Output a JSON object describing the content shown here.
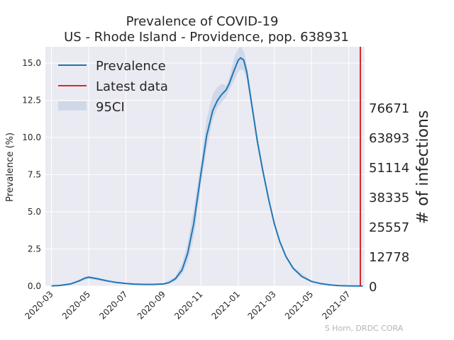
{
  "chart_data": {
    "type": "line",
    "title": "Prevalence of COVID-19",
    "subtitle": "US - Rhode Island - Providence, pop. 638931",
    "ylabel": "Prevalence (%)",
    "y2label": "# of infections",
    "credit": "S Horn, DRDC CORA",
    "ylim": [
      0,
      16.1
    ],
    "xlim": [
      "2020-02-20",
      "2021-07-27"
    ],
    "grid": true,
    "legend_position": "top-left",
    "x_ticks": [
      "2020-03",
      "2020-05",
      "2020-07",
      "2020-09",
      "2020-11",
      "2021-01",
      "2021-03",
      "2021-05",
      "2021-07"
    ],
    "x_tick_dates": [
      "2020-03-01",
      "2020-05-01",
      "2020-07-01",
      "2020-09-01",
      "2020-11-01",
      "2021-01-01",
      "2021-03-01",
      "2021-05-01",
      "2021-07-01"
    ],
    "y_ticks": [
      "0.0",
      "2.5",
      "5.0",
      "7.5",
      "10.0",
      "12.5",
      "15.0"
    ],
    "y_tick_values": [
      0,
      2.5,
      5,
      7.5,
      10,
      12.5,
      15
    ],
    "y2_ticks": [
      "0",
      "12778",
      "25557",
      "38335",
      "51114",
      "63893",
      "76671"
    ],
    "y2_tick_values": [
      0,
      2.0,
      4.0,
      6.0,
      8.0,
      10.0,
      12.0
    ],
    "latest_data_date": "2021-07-20",
    "series": [
      {
        "name": "Prevalence",
        "color": "#1f77b4",
        "x": [
          "2020-03-01",
          "2020-03-15",
          "2020-04-01",
          "2020-04-15",
          "2020-04-25",
          "2020-05-01",
          "2020-05-15",
          "2020-06-01",
          "2020-06-15",
          "2020-07-01",
          "2020-07-15",
          "2020-08-01",
          "2020-08-15",
          "2020-09-01",
          "2020-09-10",
          "2020-09-20",
          "2020-10-01",
          "2020-10-10",
          "2020-10-20",
          "2020-11-01",
          "2020-11-10",
          "2020-11-20",
          "2020-11-28",
          "2020-12-05",
          "2020-12-12",
          "2020-12-17",
          "2020-12-25",
          "2021-01-01",
          "2021-01-05",
          "2021-01-10",
          "2021-01-15",
          "2021-01-22",
          "2021-02-01",
          "2021-02-10",
          "2021-02-20",
          "2021-03-01",
          "2021-03-10",
          "2021-03-20",
          "2021-04-01",
          "2021-04-15",
          "2021-05-01",
          "2021-05-15",
          "2021-06-01",
          "2021-06-15",
          "2021-07-01",
          "2021-07-15",
          "2021-07-24"
        ],
        "values": [
          0.02,
          0.05,
          0.15,
          0.35,
          0.55,
          0.6,
          0.5,
          0.35,
          0.25,
          0.18,
          0.14,
          0.12,
          0.12,
          0.15,
          0.25,
          0.5,
          1.1,
          2.2,
          4.2,
          7.6,
          10.1,
          11.8,
          12.5,
          12.9,
          13.2,
          13.6,
          14.5,
          15.2,
          15.35,
          15.2,
          14.4,
          12.5,
          9.8,
          7.8,
          5.8,
          4.2,
          3.0,
          2.0,
          1.2,
          0.65,
          0.32,
          0.18,
          0.08,
          0.04,
          0.02,
          0.01,
          0.005
        ]
      }
    ],
    "ci_band": {
      "name": "95CI",
      "color": "#b0c4de",
      "x": [
        "2020-03-01",
        "2020-04-01",
        "2020-05-01",
        "2020-06-01",
        "2020-07-01",
        "2020-08-01",
        "2020-09-01",
        "2020-09-20",
        "2020-10-01",
        "2020-10-10",
        "2020-10-20",
        "2020-11-01",
        "2020-11-10",
        "2020-11-20",
        "2020-11-28",
        "2020-12-05",
        "2020-12-12",
        "2020-12-17",
        "2020-12-25",
        "2021-01-01",
        "2021-01-05",
        "2021-01-10",
        "2021-01-15",
        "2021-01-22",
        "2021-02-01",
        "2021-02-10",
        "2021-02-20",
        "2021-03-01",
        "2021-03-10",
        "2021-03-20",
        "2021-04-01",
        "2021-05-01",
        "2021-06-01",
        "2021-07-01"
      ],
      "upper": [
        0.04,
        0.2,
        0.7,
        0.42,
        0.22,
        0.15,
        0.2,
        0.65,
        1.5,
        2.9,
        5.2,
        8.4,
        11.2,
        12.9,
        13.4,
        13.6,
        13.5,
        14.0,
        15.3,
        16.0,
        16.1,
        15.8,
        14.9,
        12.9,
        10.1,
        8.0,
        6.0,
        4.4,
        3.1,
        2.1,
        1.3,
        0.36,
        0.1,
        0.03
      ],
      "lower": [
        0.01,
        0.1,
        0.5,
        0.28,
        0.14,
        0.09,
        0.1,
        0.35,
        0.8,
        1.6,
        3.3,
        6.8,
        9.2,
        11.2,
        12.0,
        12.4,
        12.7,
        13.2,
        13.8,
        14.4,
        14.6,
        14.5,
        13.9,
        12.1,
        9.5,
        7.6,
        5.6,
        4.0,
        2.9,
        1.9,
        1.1,
        0.28,
        0.06,
        0.01
      ]
    },
    "legend": {
      "prevalence": "Prevalence",
      "latest": "Latest data",
      "ci": "95CI"
    },
    "latest_color": "#d62728"
  }
}
